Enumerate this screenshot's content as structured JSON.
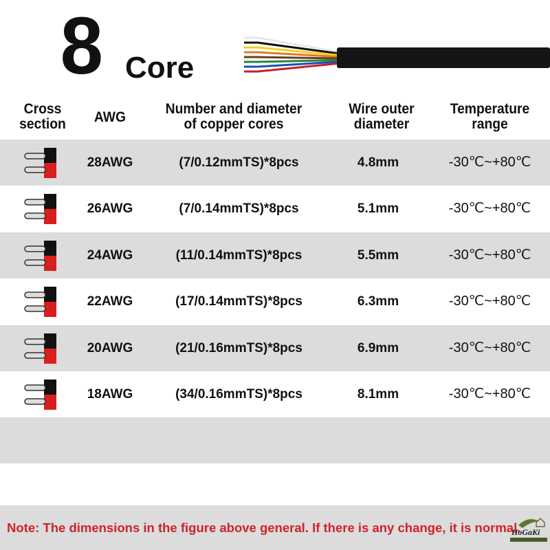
{
  "title": {
    "number": "8",
    "word": "Core"
  },
  "headers": {
    "cross": "Cross\nsection",
    "awg": "AWG",
    "cores": "Number and diameter\nof copper cores",
    "diameter": "Wire outer\ndiameter",
    "temp": "Temperature\nrange"
  },
  "rows": [
    {
      "awg": "28AWG",
      "cores": "(7/0.12mmTS)*8pcs",
      "diameter": "4.8mm",
      "temp": "-30℃~+80℃"
    },
    {
      "awg": "26AWG",
      "cores": "(7/0.14mmTS)*8pcs",
      "diameter": "5.1mm",
      "temp": "-30℃~+80℃"
    },
    {
      "awg": "24AWG",
      "cores": "(11/0.14mmTS)*8pcs",
      "diameter": "5.5mm",
      "temp": "-30℃~+80℃"
    },
    {
      "awg": "22AWG",
      "cores": "(17/0.14mmTS)*8pcs",
      "diameter": "6.3mm",
      "temp": "-30℃~+80℃"
    },
    {
      "awg": "20AWG",
      "cores": "(21/0.16mmTS)*8pcs",
      "diameter": "6.9mm",
      "temp": "-30℃~+80℃"
    },
    {
      "awg": "18AWG",
      "cores": "(34/0.16mmTS)*8pcs",
      "diameter": "8.1mm",
      "temp": "-30℃~+80℃"
    }
  ],
  "note": "Note: The dimensions in the figure above general. If there is any change, it is normal.",
  "logo": {
    "name": "HoGaKi",
    "tagline": "Home - garden - kitchen"
  },
  "colors": {
    "row_gray": "#dcdcdc",
    "note_red": "#d0222a"
  },
  "wire_colors": [
    "#e8e8e8",
    "#111111",
    "#f2d21a",
    "#e07a2a",
    "#6b3b1e",
    "#1f8a3a",
    "#1f4fb0",
    "#c4202a"
  ]
}
